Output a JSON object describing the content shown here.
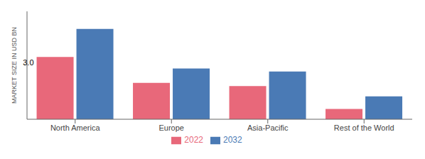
{
  "chart_data": {
    "type": "bar",
    "ylabel": "MARKET SIZE IN USD BN",
    "categories": [
      "North America",
      "Europe",
      "Asia-Pacific",
      "Rest of the World"
    ],
    "series": [
      {
        "name": "2022",
        "color": "#e8687a",
        "values": [
          3.0,
          1.75,
          1.6,
          0.5
        ]
      },
      {
        "name": "2032",
        "color": "#4a7ab5",
        "values": [
          4.35,
          2.45,
          2.3,
          1.1
        ]
      }
    ],
    "ylim": [
      0,
      5.2
    ],
    "grid": false,
    "legend": "bottom",
    "tick_labels": "x",
    "annotations": [
      {
        "text": "3.0",
        "category": "North America",
        "series": "2022"
      }
    ]
  }
}
